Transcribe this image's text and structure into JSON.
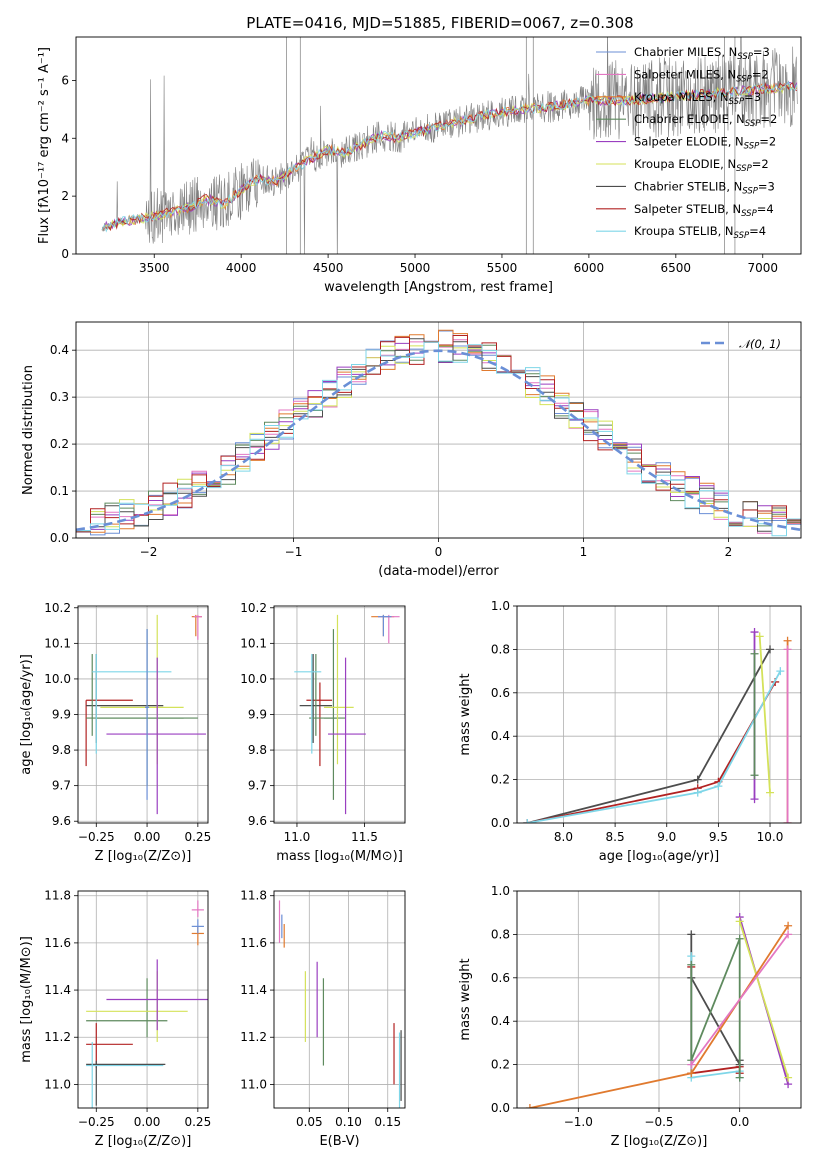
{
  "figure_title": "PLATE=0416, MJD=51885, FIBERID=0067, z=0.308",
  "colors": {
    "chabrier_miles": "#6b8fd6",
    "salpeter_miles": "#e377c2",
    "kroupa_miles": "#e07a2f",
    "chabrier_elodie": "#5e8a5e",
    "salpeter_elodie": "#9a3fc0",
    "kroupa_elodie": "#d4e25a",
    "chabrier_stelib": "#4d4d4d",
    "salpeter_stelib": "#b22222",
    "kroupa_stelib": "#7fd6e8",
    "spectrum_gray": "#7f7f7f",
    "gaussian": "#6a8fd6",
    "grid": "#b0b0b0"
  },
  "chart_data": [
    {
      "id": "spectrum",
      "type": "line",
      "xlabel": "wavelength [Angstrom, rest frame]",
      "ylabel": "Flux [fλ10⁻¹⁷ erg cm⁻² s⁻¹ A⁻¹]",
      "xlim": [
        3050,
        7220
      ],
      "ylim": [
        0,
        7.5
      ],
      "xticks": [
        3500,
        4000,
        4500,
        5000,
        5500,
        6000,
        6500,
        7000
      ],
      "yticks": [
        0,
        2,
        4,
        6
      ],
      "grid": false,
      "legend_placement": "top-right",
      "legend": [
        {
          "base": "Chabrier MILES, N",
          "sub": "SSP",
          "tail": "=3",
          "color_key": "chabrier_miles"
        },
        {
          "base": "Salpeter MILES, N",
          "sub": "SSP",
          "tail": "=2",
          "color_key": "salpeter_miles"
        },
        {
          "base": "Kroupa MILES, N",
          "sub": "SSP",
          "tail": "=3",
          "color_key": "kroupa_miles"
        },
        {
          "base": "Chabrier ELODIE, N",
          "sub": "SSP",
          "tail": "=2",
          "color_key": "chabrier_elodie"
        },
        {
          "base": "Salpeter ELODIE, N",
          "sub": "SSP",
          "tail": "=2",
          "color_key": "salpeter_elodie"
        },
        {
          "base": "Kroupa ELODIE, N",
          "sub": "SSP",
          "tail": "=2",
          "color_key": "kroupa_elodie"
        },
        {
          "base": "Chabrier STELIB, N",
          "sub": "SSP",
          "tail": "=3",
          "color_key": "chabrier_stelib"
        },
        {
          "base": "Salpeter STELIB, N",
          "sub": "SSP",
          "tail": "=4",
          "color_key": "salpeter_stelib"
        },
        {
          "base": "Kroupa STELIB, N",
          "sub": "SSP",
          "tail": "=4",
          "color_key": "kroupa_stelib"
        }
      ],
      "continuum": {
        "x": [
          3200,
          3300,
          3400,
          3500,
          3600,
          3700,
          3800,
          3900,
          4000,
          4100,
          4200,
          4300,
          4400,
          4500,
          4600,
          4700,
          4800,
          4900,
          5000,
          5200,
          5400,
          5600,
          5800,
          6000,
          6200,
          6400,
          6600,
          6800,
          7000,
          7200
        ],
        "y": [
          0.9,
          1.1,
          1.2,
          1.3,
          1.45,
          1.6,
          1.9,
          1.7,
          2.2,
          2.6,
          2.5,
          2.9,
          3.3,
          3.6,
          3.5,
          3.8,
          4.1,
          4.0,
          4.2,
          4.5,
          4.8,
          5.0,
          5.1,
          5.3,
          5.3,
          5.4,
          5.5,
          5.6,
          5.7,
          5.8
        ]
      }
    },
    {
      "id": "residuals",
      "type": "line",
      "xlabel": "(data-model)/error",
      "ylabel": "Normed distribution",
      "xlim": [
        -2.5,
        2.5
      ],
      "ylim": [
        0,
        0.46
      ],
      "xticks": [
        -2,
        -1,
        0,
        1,
        2
      ],
      "yticks": [
        0.0,
        0.1,
        0.2,
        0.3,
        0.4
      ],
      "grid": true,
      "legend_placement": "top-right",
      "legend_label": "𝒩(0, 1)",
      "gaussian": {
        "mu": 0,
        "sigma": 1
      }
    },
    {
      "id": "age-vs-Z",
      "type": "scatter",
      "xlabel": "Z [log₁₀(Z/Z⊙)]",
      "ylabel": "age  [log₁₀(age/yr)]",
      "xlim": [
        -0.34,
        0.3
      ],
      "ylim": [
        9.595,
        10.205
      ],
      "xticks": [
        -0.25,
        0.0,
        0.25
      ],
      "xtick_labels": [
        "−0.25",
        "0.00",
        "0.25"
      ],
      "yticks": [
        9.6,
        9.7,
        9.8,
        9.9,
        10.0,
        10.1,
        10.2
      ],
      "grid": true,
      "points": [
        {
          "x": -0.3,
          "y": 9.94,
          "xerr": 0.0,
          "yerr_lo": 0.0,
          "yerr_hi": 0.0,
          "x_lo": -0.3,
          "x_hi": -0.07,
          "y_lo": 9.755,
          "y_hi": 9.94,
          "series": "salpeter_stelib"
        },
        {
          "x": -0.25,
          "y": 9.925,
          "x_lo": -0.3,
          "x_hi": 0.08,
          "y_lo": 9.82,
          "y_hi": 10.07,
          "series": "chabrier_stelib"
        },
        {
          "x": -0.27,
          "y": 9.89,
          "x_lo": -0.3,
          "x_hi": 0.25,
          "y_lo": 9.84,
          "y_hi": 10.07,
          "series": "chabrier_elodie"
        },
        {
          "x": 0.0,
          "y": 9.89,
          "x_lo": -0.25,
          "x_hi": 0.18,
          "y_lo": 9.7,
          "y_hi": 10.14,
          "series": "chabrier_elodie"
        },
        {
          "x": -0.25,
          "y": 10.02,
          "x_lo": -0.27,
          "x_hi": 0.12,
          "y_lo": 9.79,
          "y_hi": 10.07,
          "series": "kroupa_stelib"
        },
        {
          "x": 0.05,
          "y": 9.92,
          "x_lo": -0.23,
          "x_hi": 0.18,
          "y_lo": 9.76,
          "y_hi": 10.18,
          "series": "kroupa_elodie"
        },
        {
          "x": 0.05,
          "y": 9.845,
          "x_lo": -0.2,
          "x_hi": 0.29,
          "y_lo": 9.62,
          "y_hi": 10.06,
          "series": "salpeter_elodie"
        },
        {
          "x": 0.24,
          "y": 10.175,
          "x_lo": 0.22,
          "x_hi": 0.27,
          "y_lo": 10.12,
          "y_hi": 10.18,
          "series": "kroupa_miles"
        },
        {
          "x": 0.25,
          "y": 10.175,
          "x_lo": 0.23,
          "x_hi": 0.27,
          "y_lo": 10.11,
          "y_hi": 10.18,
          "series": "salpeter_miles"
        },
        {
          "x": 0.0,
          "y": 9.92,
          "x_lo": -0.01,
          "x_hi": 0.01,
          "y_lo": 9.66,
          "y_hi": 10.14,
          "series": "chabrier_miles"
        }
      ]
    },
    {
      "id": "age-vs-mass",
      "type": "scatter",
      "xlabel": "mass [log₁₀(M/M⊙)]",
      "ylabel": "",
      "xlim": [
        10.83,
        11.8
      ],
      "ylim": [
        9.595,
        10.205
      ],
      "xticks": [
        11.0,
        11.5
      ],
      "xtick_labels": [
        "11.0",
        "11.5"
      ],
      "yticks": [
        9.6,
        9.7,
        9.8,
        9.9,
        10.0,
        10.1,
        10.2
      ],
      "grid": true,
      "points": [
        {
          "x": 11.17,
          "y": 9.94,
          "x_lo": 11.07,
          "x_hi": 11.26,
          "y_lo": 9.755,
          "y_hi": 9.99,
          "series": "salpeter_stelib"
        },
        {
          "x": 11.12,
          "y": 9.925,
          "x_lo": 11.02,
          "x_hi": 11.26,
          "y_lo": 9.82,
          "y_hi": 10.07,
          "series": "chabrier_stelib"
        },
        {
          "x": 11.14,
          "y": 9.89,
          "x_lo": 11.09,
          "x_hi": 11.3,
          "y_lo": 9.84,
          "y_hi": 10.07,
          "series": "chabrier_elodie"
        },
        {
          "x": 11.27,
          "y": 9.89,
          "x_lo": 11.2,
          "x_hi": 11.36,
          "y_lo": 9.66,
          "y_hi": 10.14,
          "series": "chabrier_elodie"
        },
        {
          "x": 11.11,
          "y": 10.02,
          "x_lo": 10.98,
          "x_hi": 11.18,
          "y_lo": 9.79,
          "y_hi": 10.07,
          "series": "kroupa_stelib"
        },
        {
          "x": 11.3,
          "y": 9.92,
          "x_lo": 11.2,
          "x_hi": 11.42,
          "y_lo": 9.76,
          "y_hi": 10.18,
          "series": "kroupa_elodie"
        },
        {
          "x": 11.36,
          "y": 9.845,
          "x_lo": 11.23,
          "x_hi": 11.51,
          "y_lo": 9.62,
          "y_hi": 10.06,
          "series": "salpeter_elodie"
        },
        {
          "x": 11.64,
          "y": 10.175,
          "x_lo": 11.55,
          "x_hi": 11.72,
          "y_lo": 10.12,
          "y_hi": 10.18,
          "series": "kroupa_miles"
        },
        {
          "x": 11.68,
          "y": 10.175,
          "x_lo": 11.6,
          "x_hi": 11.76,
          "y_lo": 10.1,
          "y_hi": 10.18,
          "series": "salpeter_miles"
        },
        {
          "x": 11.64,
          "y": 10.175,
          "x_lo": 11.6,
          "x_hi": 11.7,
          "y_lo": 10.12,
          "y_hi": 10.18,
          "series": "chabrier_miles"
        }
      ]
    },
    {
      "id": "weight-vs-age",
      "type": "line",
      "xlabel": "age  [log₁₀(age/yr)]",
      "ylabel": "mass weight",
      "xlim": [
        7.55,
        10.3
      ],
      "ylim": [
        0,
        1.0
      ],
      "xticks": [
        8.0,
        8.5,
        9.0,
        9.5,
        10.0
      ],
      "yticks": [
        0.0,
        0.2,
        0.4,
        0.6,
        0.8,
        1.0
      ],
      "grid": true,
      "series": [
        {
          "name": "Chabrier STELIB",
          "color_key": "chabrier_stelib",
          "x": [
            7.65,
            9.3,
            10.0
          ],
          "y": [
            0.0,
            0.2,
            0.8
          ]
        },
        {
          "name": "Salpeter STELIB",
          "color_key": "salpeter_stelib",
          "x": [
            7.65,
            9.3,
            9.5,
            10.05
          ],
          "y": [
            0.0,
            0.16,
            0.19,
            0.65
          ]
        },
        {
          "name": "Kroupa STELIB",
          "color_key": "kroupa_stelib",
          "x": [
            7.65,
            9.3,
            9.5,
            10.1
          ],
          "y": [
            0.0,
            0.14,
            0.17,
            0.7
          ]
        },
        {
          "name": "Salpeter ELODIE",
          "color_key": "salpeter_elodie",
          "x": [
            9.85,
            9.85
          ],
          "y": [
            0.88,
            0.11
          ]
        },
        {
          "name": "Kroupa ELODIE",
          "color_key": "kroupa_elodie",
          "x": [
            9.9,
            10.0
          ],
          "y": [
            0.86,
            0.14
          ]
        },
        {
          "name": "Chabrier ELODIE",
          "color_key": "chabrier_elodie",
          "x": [
            9.85,
            9.85
          ],
          "y": [
            0.78,
            0.22
          ]
        },
        {
          "name": "Kroupa MILES",
          "color_key": "kroupa_miles",
          "x": [
            10.17,
            10.17
          ],
          "y": [
            0.84,
            0.0
          ]
        },
        {
          "name": "Salpeter MILES",
          "color_key": "salpeter_miles",
          "x": [
            10.17,
            10.17
          ],
          "y": [
            0.8,
            0.0
          ]
        }
      ]
    },
    {
      "id": "mass-vs-Z",
      "type": "scatter",
      "xlabel": "Z [log₁₀(Z/Z⊙)]",
      "ylabel": "mass [log₁₀(M/M⊙)]",
      "xlim": [
        -0.34,
        0.3
      ],
      "ylim": [
        10.9,
        11.82
      ],
      "xticks": [
        -0.25,
        0.0,
        0.25
      ],
      "xtick_labels": [
        "−0.25",
        "0.00",
        "0.25"
      ],
      "yticks": [
        11.0,
        11.2,
        11.4,
        11.6,
        11.8
      ],
      "grid": true,
      "points": [
        {
          "x": -0.25,
          "y": 11.17,
          "x_lo": -0.3,
          "x_hi": -0.07,
          "y_lo": 11.07,
          "y_hi": 11.26,
          "series": "salpeter_stelib"
        },
        {
          "x": -0.25,
          "y": 11.085,
          "x_lo": -0.3,
          "x_hi": 0.09,
          "y_lo": 10.91,
          "y_hi": 11.1,
          "series": "chabrier_stelib"
        },
        {
          "x": -0.27,
          "y": 11.08,
          "x_lo": -0.3,
          "x_hi": 0.08,
          "y_lo": 10.9,
          "y_hi": 11.18,
          "series": "kroupa_stelib"
        },
        {
          "x": 0.0,
          "y": 11.27,
          "x_lo": -0.3,
          "x_hi": 0.1,
          "y_lo": 11.2,
          "y_hi": 11.45,
          "series": "chabrier_elodie"
        },
        {
          "x": 0.05,
          "y": 11.31,
          "x_lo": -0.3,
          "x_hi": 0.2,
          "y_lo": 11.18,
          "y_hi": 11.48,
          "series": "kroupa_elodie"
        },
        {
          "x": 0.05,
          "y": 11.36,
          "x_lo": -0.2,
          "x_hi": 0.3,
          "y_lo": 11.23,
          "y_hi": 11.53,
          "series": "salpeter_elodie"
        },
        {
          "x": 0.25,
          "y": 11.64,
          "x_lo": 0.22,
          "x_hi": 0.28,
          "y_lo": 11.59,
          "y_hi": 11.67,
          "series": "kroupa_miles"
        },
        {
          "x": 0.25,
          "y": 11.74,
          "x_lo": 0.22,
          "x_hi": 0.28,
          "y_lo": 11.71,
          "y_hi": 11.78,
          "series": "salpeter_miles"
        },
        {
          "x": 0.25,
          "y": 11.67,
          "x_lo": 0.22,
          "x_hi": 0.28,
          "y_lo": 11.64,
          "y_hi": 11.7,
          "series": "chabrier_miles"
        }
      ]
    },
    {
      "id": "mass-vs-ebv",
      "type": "scatter",
      "xlabel": "E(B-V)",
      "ylabel": "",
      "xlim": [
        0.005,
        0.172
      ],
      "ylim": [
        10.9,
        11.82
      ],
      "xticks": [
        0.05,
        0.1,
        0.15
      ],
      "xtick_labels": [
        "0.05",
        "0.10",
        "0.15"
      ],
      "yticks": [
        11.0,
        11.2,
        11.4,
        11.6,
        11.8
      ],
      "grid": true,
      "points": [
        {
          "x": 0.012,
          "y": 11.69,
          "y_lo": 11.6,
          "y_hi": 11.78,
          "series": "salpeter_miles"
        },
        {
          "x": 0.015,
          "y": 11.67,
          "y_lo": 11.62,
          "y_hi": 11.72,
          "series": "chabrier_miles"
        },
        {
          "x": 0.018,
          "y": 11.64,
          "y_lo": 11.58,
          "y_hi": 11.68,
          "series": "kroupa_miles"
        },
        {
          "x": 0.045,
          "y": 11.33,
          "y_lo": 11.18,
          "y_hi": 11.48,
          "series": "kroupa_elodie"
        },
        {
          "x": 0.06,
          "y": 11.36,
          "y_lo": 11.2,
          "y_hi": 11.52,
          "series": "salpeter_elodie"
        },
        {
          "x": 0.068,
          "y": 11.27,
          "y_lo": 11.08,
          "y_hi": 11.45,
          "series": "chabrier_elodie"
        },
        {
          "x": 0.158,
          "y": 11.13,
          "y_lo": 11.0,
          "y_hi": 11.26,
          "series": "salpeter_stelib"
        },
        {
          "x": 0.165,
          "y": 11.08,
          "y_lo": 10.9,
          "y_hi": 11.22,
          "series": "kroupa_stelib"
        },
        {
          "x": 0.167,
          "y": 11.09,
          "y_lo": 10.93,
          "y_hi": 11.23,
          "series": "chabrier_stelib"
        }
      ]
    },
    {
      "id": "weight-vs-Z",
      "type": "line",
      "xlabel": "Z [log₁₀(Z/Z⊙)]",
      "ylabel": "mass weight",
      "xlim": [
        -1.38,
        0.38
      ],
      "ylim": [
        0,
        1.0
      ],
      "xticks": [
        -1.0,
        -0.5,
        0.0
      ],
      "xtick_labels": [
        "−1.0",
        "−0.5",
        "0.0"
      ],
      "yticks": [
        0.0,
        0.2,
        0.4,
        0.6,
        0.8,
        1.0
      ],
      "grid": true,
      "series": [
        {
          "name": "Chabrier STELIB",
          "color_key": "chabrier_stelib",
          "x": [
            -0.3,
            -0.3,
            0.0,
            0.0
          ],
          "y": [
            0.8,
            0.6,
            0.2,
            0.22
          ]
        },
        {
          "name": "Salpeter STELIB",
          "color_key": "salpeter_stelib",
          "x": [
            -0.3,
            -0.3,
            0.0,
            0.0
          ],
          "y": [
            0.65,
            0.16,
            0.19,
            0.16
          ]
        },
        {
          "name": "Kroupa STELIB",
          "color_key": "kroupa_stelib",
          "x": [
            -0.3,
            -0.3,
            0.0,
            0.0
          ],
          "y": [
            0.7,
            0.14,
            0.17,
            0.14
          ]
        },
        {
          "name": "Chabrier ELODIE",
          "color_key": "chabrier_elodie",
          "x": [
            -0.3,
            -0.3,
            0.0,
            0.0
          ],
          "y": [
            0.66,
            0.22,
            0.78,
            0.14
          ]
        },
        {
          "name": "Salpeter ELODIE",
          "color_key": "salpeter_elodie",
          "x": [
            0.0,
            0.3
          ],
          "y": [
            0.88,
            0.11
          ]
        },
        {
          "name": "Kroupa ELODIE",
          "color_key": "kroupa_elodie",
          "x": [
            0.0,
            0.3
          ],
          "y": [
            0.86,
            0.14
          ]
        },
        {
          "name": "Kroupa MILES",
          "color_key": "kroupa_miles",
          "x": [
            -1.3,
            -0.3,
            0.3
          ],
          "y": [
            0.0,
            0.16,
            0.84
          ]
        },
        {
          "name": "Salpeter MILES",
          "color_key": "salpeter_miles",
          "x": [
            -0.3,
            0.3
          ],
          "y": [
            0.2,
            0.8
          ]
        }
      ]
    }
  ]
}
